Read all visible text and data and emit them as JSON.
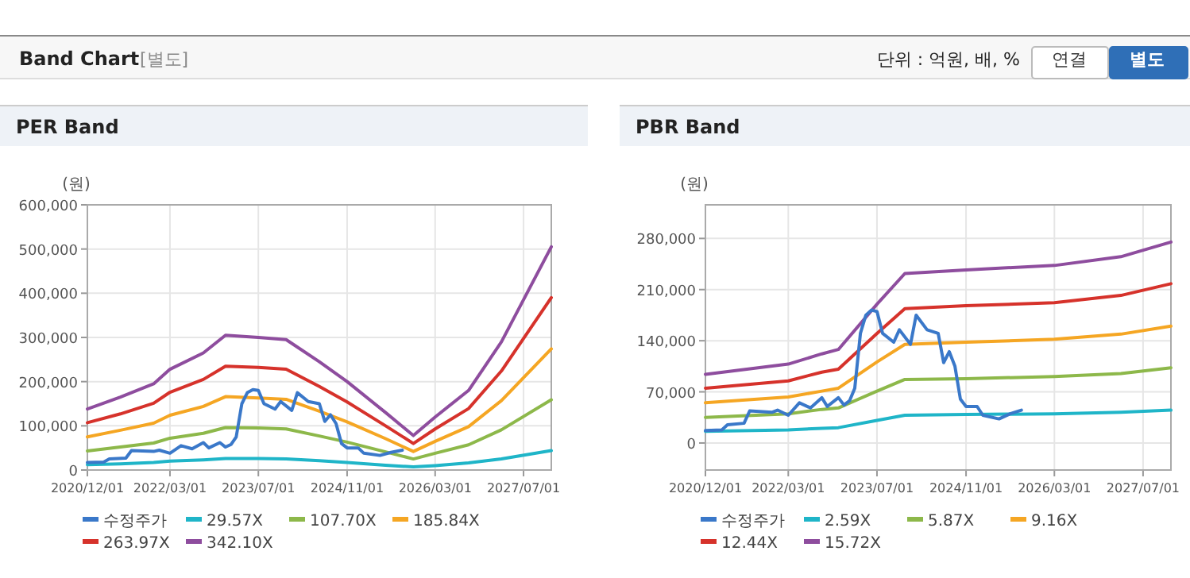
{
  "chart_data": [
    {
      "type": "other",
      "title": "Band Chart",
      "annotations": [
        "[별도]",
        "단위 : 억원, 배, %",
        "연결",
        "별도"
      ]
    },
    {
      "type": "line",
      "title": "PER Band",
      "ylabel": "(원)",
      "grid": true,
      "legend": "bottom",
      "x": [
        "2020-12-01",
        "2021-06-01",
        "2021-12-01",
        "2022-03-01",
        "2022-09-01",
        "2023-01-01",
        "2023-07-01",
        "2023-12-01",
        "2024-06-01",
        "2024-11-01",
        "2025-06-01",
        "2025-11-01",
        "2026-03-01",
        "2026-09-01",
        "2027-03-01",
        "2027-12-01"
      ],
      "xlim": [
        "2020-12-01",
        "2027-12-01"
      ],
      "xticks": [
        {
          "value": "2020-12-01",
          "label": "2020/12/01"
        },
        {
          "value": "2022-03-01",
          "label": "2022/03/01"
        },
        {
          "value": "2023-07-01",
          "label": "2023/07/01"
        },
        {
          "value": "2024-11-01",
          "label": "2024/11/01"
        },
        {
          "value": "2026-03-01",
          "label": "2026/03/01"
        },
        {
          "value": "2027-07-01",
          "label": "2027/07/01"
        }
      ],
      "ylim": [
        0,
        600000
      ],
      "yticks": [
        0,
        {
          "value": 100000,
          "label": "100,000"
        },
        {
          "value": 200000,
          "label": "200,000"
        },
        {
          "value": 300000,
          "label": "300,000"
        },
        {
          "value": 400000,
          "label": "400,000"
        },
        {
          "value": 500000,
          "label": "500,000"
        },
        {
          "value": 600000,
          "label": "600,000"
        }
      ],
      "series": [
        {
          "name": "수정주가",
          "color": "#3a78c9",
          "x": [
            "2020-12-01",
            "2021-03-01",
            "2021-04-01",
            "2021-07-01",
            "2021-08-01",
            "2021-12-01",
            "2022-01-01",
            "2022-03-01",
            "2022-05-01",
            "2022-07-01",
            "2022-09-01",
            "2022-10-01",
            "2022-12-01",
            "2023-01-01",
            "2023-02-01",
            "2023-03-01",
            "2023-04-01",
            "2023-05-01",
            "2023-06-01",
            "2023-07-01",
            "2023-08-01",
            "2023-10-01",
            "2023-11-01",
            "2024-01-01",
            "2024-02-01",
            "2024-04-01",
            "2024-06-01",
            "2024-07-01",
            "2024-08-01",
            "2024-09-01",
            "2024-10-01",
            "2024-11-01",
            "2025-01-01",
            "2025-02-01",
            "2025-05-01",
            "2025-07-01",
            "2025-09-01"
          ],
          "values": [
            17000,
            18000,
            25000,
            27000,
            44000,
            42000,
            45000,
            38000,
            55000,
            48000,
            62000,
            50000,
            62000,
            52000,
            58000,
            75000,
            150000,
            175000,
            182000,
            180000,
            150000,
            138000,
            155000,
            135000,
            175000,
            155000,
            150000,
            110000,
            125000,
            105000,
            60000,
            50000,
            50000,
            38000,
            33000,
            40000,
            45000
          ]
        },
        {
          "name": "29.57X",
          "color": "#1fb5c8",
          "values": [
            12000,
            14000,
            17000,
            20000,
            23000,
            26000,
            26000,
            25000,
            21000,
            17000,
            11000,
            7000,
            10000,
            16000,
            25000,
            44000
          ]
        },
        {
          "name": "107.70X",
          "color": "#8db84a",
          "values": [
            43000,
            52000,
            61000,
            72000,
            83000,
            96000,
            95000,
            93000,
            77000,
            63000,
            41000,
            25000,
            38000,
            57000,
            91000,
            159000
          ]
        },
        {
          "name": "185.84X",
          "color": "#f5a623",
          "values": [
            75000,
            90000,
            106000,
            124000,
            144000,
            166000,
            163000,
            160000,
            133000,
            109000,
            71000,
            42000,
            65000,
            98000,
            157000,
            274000
          ]
        },
        {
          "name": "263.97X",
          "color": "#d6322b",
          "values": [
            107000,
            127000,
            151000,
            176000,
            205000,
            235000,
            232000,
            228000,
            189000,
            154000,
            100000,
            60000,
            93000,
            139000,
            224000,
            390000
          ]
        },
        {
          "name": "342.10X",
          "color": "#8e4d9e",
          "values": [
            138000,
            165000,
            195000,
            228000,
            265000,
            305000,
            300000,
            295000,
            245000,
            200000,
            130000,
            78000,
            120000,
            180000,
            290000,
            505000
          ]
        }
      ]
    },
    {
      "type": "line",
      "title": "PBR Band",
      "ylabel": "(원)",
      "grid": true,
      "legend": "bottom",
      "x": [
        "2020-12-01",
        "2022-03-01",
        "2022-09-01",
        "2022-12-01",
        "2023-07-01",
        "2023-12-01",
        "2024-11-01",
        "2026-03-01",
        "2027-03-01",
        "2027-12-01"
      ],
      "xlim": [
        "2020-12-01",
        "2027-12-01"
      ],
      "xticks": [
        {
          "value": "2020-12-01",
          "label": "2020/12/01"
        },
        {
          "value": "2022-03-01",
          "label": "2022/03/01"
        },
        {
          "value": "2023-07-01",
          "label": "2023/07/01"
        },
        {
          "value": "2024-11-01",
          "label": "2024/11/01"
        },
        {
          "value": "2026-03-01",
          "label": "2026/03/01"
        },
        {
          "value": "2027-07-01",
          "label": "2027/07/01"
        }
      ],
      "ylim": [
        -37000,
        326000
      ],
      "yticks": [
        0,
        {
          "value": 70000,
          "label": "70,000"
        },
        {
          "value": 140000,
          "label": "140,000"
        },
        {
          "value": 210000,
          "label": "210,000"
        },
        {
          "value": 280000,
          "label": "280,000"
        }
      ],
      "series": [
        {
          "name": "수정주가",
          "color": "#3a78c9",
          "x": [
            "2020-12-01",
            "2021-03-01",
            "2021-04-01",
            "2021-07-01",
            "2021-08-01",
            "2021-12-01",
            "2022-01-01",
            "2022-03-01",
            "2022-05-01",
            "2022-07-01",
            "2022-09-01",
            "2022-10-01",
            "2022-12-01",
            "2023-01-01",
            "2023-02-01",
            "2023-03-01",
            "2023-04-01",
            "2023-05-01",
            "2023-06-01",
            "2023-07-01",
            "2023-08-01",
            "2023-10-01",
            "2023-11-01",
            "2024-01-01",
            "2024-02-01",
            "2024-04-01",
            "2024-06-01",
            "2024-07-01",
            "2024-08-01",
            "2024-09-01",
            "2024-10-01",
            "2024-11-01",
            "2025-01-01",
            "2025-02-01",
            "2025-05-01",
            "2025-07-01",
            "2025-09-01"
          ],
          "values": [
            17000,
            18000,
            25000,
            27000,
            44000,
            42000,
            45000,
            38000,
            55000,
            48000,
            62000,
            50000,
            62000,
            52000,
            58000,
            75000,
            150000,
            175000,
            182000,
            180000,
            150000,
            138000,
            155000,
            135000,
            175000,
            155000,
            150000,
            110000,
            125000,
            105000,
            60000,
            50000,
            50000,
            38000,
            33000,
            40000,
            45000
          ]
        },
        {
          "name": "2.59X",
          "color": "#1fb5c8",
          "values": [
            16000,
            18000,
            20000,
            21000,
            31000,
            38000,
            39000,
            40000,
            42000,
            45000
          ]
        },
        {
          "name": "5.87X",
          "color": "#8db84a",
          "values": [
            35000,
            40000,
            46000,
            48000,
            71000,
            87000,
            88000,
            91000,
            95000,
            103000
          ]
        },
        {
          "name": "9.16X",
          "color": "#f5a623",
          "values": [
            55000,
            63000,
            71000,
            75000,
            111000,
            135000,
            138000,
            142000,
            149000,
            160000
          ]
        },
        {
          "name": "12.44X",
          "color": "#d6322b",
          "values": [
            75000,
            85000,
            97000,
            101000,
            150000,
            184000,
            188000,
            192000,
            202000,
            218000
          ]
        },
        {
          "name": "15.72X",
          "color": "#8e4d9e",
          "values": [
            94000,
            108000,
            122000,
            128000,
            190000,
            232000,
            237000,
            243000,
            255000,
            275000
          ]
        }
      ]
    }
  ]
}
